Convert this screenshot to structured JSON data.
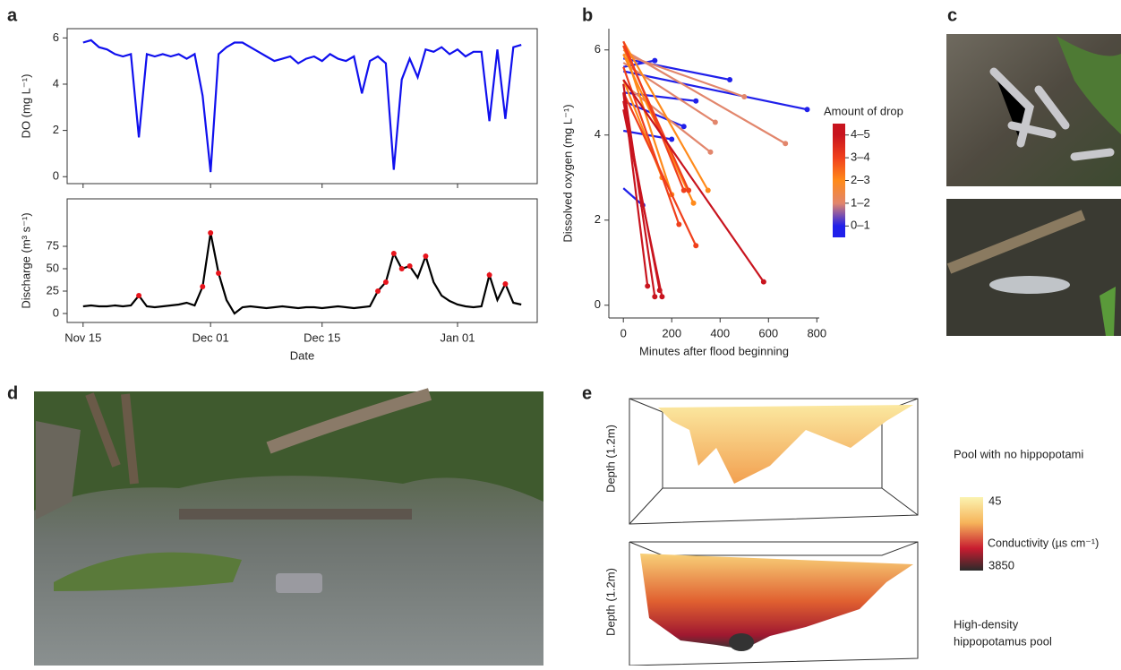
{
  "panel_labels": [
    "a",
    "b",
    "c",
    "d",
    "e"
  ],
  "chart_data": [
    {
      "type": "line",
      "ylabel": "DO (mg L⁻¹)",
      "x": [
        "Nov 15",
        "Nov 16",
        "Nov 17",
        "Nov 18",
        "Nov 19",
        "Nov 20",
        "Nov 21",
        "Nov 22",
        "Nov 23",
        "Nov 24",
        "Nov 25",
        "Nov 26",
        "Nov 27",
        "Nov 28",
        "Nov 29",
        "Nov 30",
        "Dec 01",
        "Dec 02",
        "Dec 03",
        "Dec 04",
        "Dec 05",
        "Dec 06",
        "Dec 07",
        "Dec 08",
        "Dec 09",
        "Dec 10",
        "Dec 11",
        "Dec 12",
        "Dec 13",
        "Dec 14",
        "Dec 15",
        "Dec 16",
        "Dec 17",
        "Dec 18",
        "Dec 19",
        "Dec 20",
        "Dec 21",
        "Dec 22",
        "Dec 23",
        "Dec 24",
        "Dec 25",
        "Dec 26",
        "Dec 27",
        "Dec 28",
        "Dec 29",
        "Dec 30",
        "Dec 31",
        "Jan 01",
        "Jan 02",
        "Jan 03",
        "Jan 04",
        "Jan 05",
        "Jan 06",
        "Jan 07",
        "Jan 08",
        "Jan 09"
      ],
      "series": [
        {
          "color": "#1010ee",
          "values": [
            5.8,
            5.9,
            5.6,
            5.5,
            5.3,
            5.2,
            5.3,
            1.7,
            5.3,
            5.2,
            5.3,
            5.2,
            5.3,
            5.1,
            5.3,
            3.5,
            0.2,
            5.3,
            5.6,
            5.8,
            5.8,
            5.6,
            5.4,
            5.2,
            5.0,
            5.1,
            5.2,
            4.9,
            5.1,
            5.2,
            5.0,
            5.3,
            5.1,
            5.0,
            5.2,
            3.6,
            5.0,
            5.2,
            4.9,
            0.3,
            4.2,
            5.1,
            4.3,
            5.5,
            5.4,
            5.6,
            5.3,
            5.5,
            5.2,
            5.4,
            5.4,
            2.4,
            5.5,
            2.5,
            5.6,
            5.7
          ]
        }
      ],
      "ylim": [
        -0.3,
        6.4
      ],
      "yticks": [
        0,
        2,
        4,
        6
      ],
      "xticks": [
        "Nov 15",
        "Dec 01",
        "Dec 15",
        "Jan 01"
      ],
      "xtick_labels": false
    },
    {
      "type": "line",
      "ylabel": "Discharge (m³ s⁻¹)",
      "xlabel": "Date",
      "x": [
        "Nov 15",
        "Nov 16",
        "Nov 17",
        "Nov 18",
        "Nov 19",
        "Nov 20",
        "Nov 21",
        "Nov 22",
        "Nov 23",
        "Nov 24",
        "Nov 25",
        "Nov 26",
        "Nov 27",
        "Nov 28",
        "Nov 29",
        "Nov 30",
        "Dec 01",
        "Dec 02",
        "Dec 03",
        "Dec 04",
        "Dec 05",
        "Dec 06",
        "Dec 07",
        "Dec 08",
        "Dec 09",
        "Dec 10",
        "Dec 11",
        "Dec 12",
        "Dec 13",
        "Dec 14",
        "Dec 15",
        "Dec 16",
        "Dec 17",
        "Dec 18",
        "Dec 19",
        "Dec 20",
        "Dec 21",
        "Dec 22",
        "Dec 23",
        "Dec 24",
        "Dec 25",
        "Dec 26",
        "Dec 27",
        "Dec 28",
        "Dec 29",
        "Dec 30",
        "Dec 31",
        "Jan 01",
        "Jan 02",
        "Jan 03",
        "Jan 04",
        "Jan 05",
        "Jan 06",
        "Jan 07",
        "Jan 08",
        "Jan 09"
      ],
      "series": [
        {
          "color": "#000000",
          "values": [
            8,
            9,
            8,
            8,
            9,
            8,
            9,
            20,
            8,
            7,
            8,
            9,
            10,
            12,
            9,
            30,
            90,
            45,
            15,
            0,
            7,
            8,
            7,
            6,
            7,
            8,
            7,
            6,
            7,
            7,
            6,
            7,
            8,
            7,
            6,
            7,
            8,
            25,
            35,
            67,
            50,
            53,
            40,
            64,
            35,
            20,
            14,
            10,
            8,
            7,
            8,
            43,
            15,
            33,
            12,
            10
          ]
        },
        {
          "color": "#e8141c",
          "marker": true,
          "values": [
            null,
            null,
            null,
            null,
            null,
            null,
            null,
            20,
            null,
            null,
            null,
            null,
            null,
            null,
            null,
            30,
            90,
            45,
            null,
            null,
            null,
            null,
            null,
            null,
            null,
            null,
            null,
            null,
            null,
            null,
            null,
            null,
            null,
            null,
            null,
            null,
            null,
            25,
            35,
            67,
            50,
            53,
            null,
            64,
            null,
            null,
            null,
            null,
            null,
            null,
            null,
            43,
            null,
            33,
            null,
            null
          ]
        }
      ],
      "ylim": [
        -10,
        128
      ],
      "yticks": [
        0,
        25,
        50,
        75
      ],
      "xticks": [
        "Nov 15",
        "Dec 01",
        "Dec 15",
        "Jan 01"
      ]
    },
    {
      "type": "segment",
      "ylabel": "Dissolved oxygen (mg L⁻¹)",
      "xlabel": "Minutes after flood beginning",
      "legend_title": "Amount of drop",
      "start_x": 0,
      "series": [
        {
          "name": "0–1",
          "color": "#2020ea",
          "start_values": [
            5.8,
            5.5,
            5.0,
            4.8,
            4.1,
            2.75,
            5.6
          ],
          "x": [
            440,
            760,
            300,
            250,
            200,
            80,
            130
          ],
          "values": [
            5.3,
            4.6,
            4.8,
            4.2,
            3.9,
            2.35,
            5.75
          ]
        },
        {
          "name": "1–2",
          "color": "#e2866c",
          "start_values": [
            6.0,
            5.9,
            5.7,
            5.2
          ],
          "x": [
            670,
            500,
            380,
            360
          ],
          "values": [
            3.8,
            4.9,
            4.3,
            3.6
          ]
        },
        {
          "name": "2–3",
          "color": "#ff8a1a",
          "start_values": [
            6.2,
            5.9,
            6.1,
            5.3
          ],
          "x": [
            350,
            290,
            200,
            160
          ],
          "values": [
            2.7,
            2.4,
            2.6,
            3.0
          ]
        },
        {
          "name": "3–4",
          "color": "#f0401c",
          "start_values": [
            6.1,
            5.6,
            5.0,
            6.2
          ],
          "x": [
            270,
            230,
            300,
            250
          ],
          "values": [
            2.7,
            1.9,
            1.4,
            2.7
          ]
        },
        {
          "name": "4–5",
          "color": "#c8141e",
          "start_values": [
            5.3,
            5.0,
            4.8,
            5.2,
            4.6
          ],
          "x": [
            580,
            100,
            150,
            130,
            160
          ],
          "values": [
            0.55,
            0.45,
            0.35,
            0.2,
            0.2
          ]
        }
      ],
      "xlim": [
        -60,
        810
      ],
      "xticks": [
        0,
        200,
        400,
        600,
        800
      ],
      "ylim": [
        -0.3,
        6.5
      ],
      "yticks": [
        0,
        2,
        4,
        6
      ]
    }
  ],
  "panel_e": {
    "depth_label": "Depth (1.2m)",
    "top_title": "Pool with no hippopotami",
    "bottom_title": [
      "High-density",
      "hippopotamus pool"
    ],
    "colorbar_label": "Conductivity (µs cm⁻¹)",
    "colorbar_ticks": [
      45,
      3850
    ]
  }
}
